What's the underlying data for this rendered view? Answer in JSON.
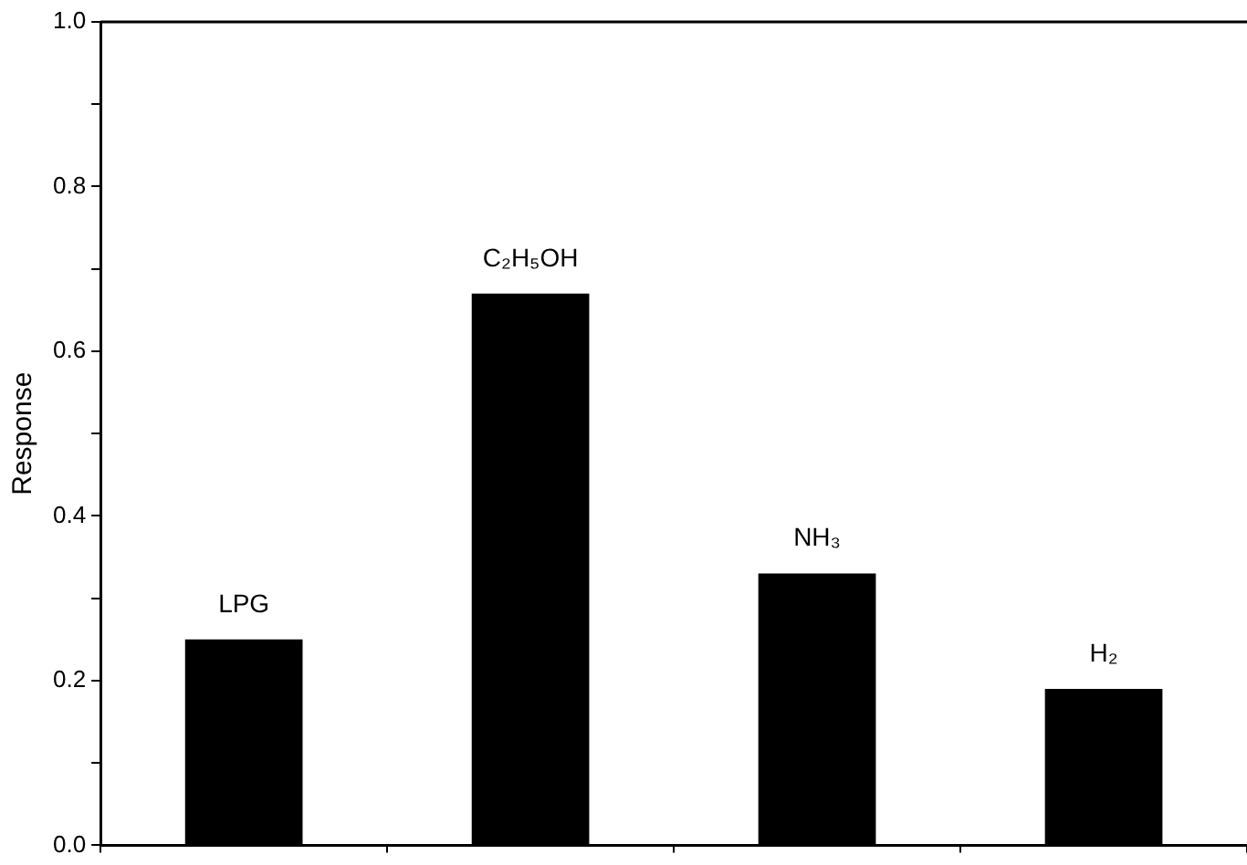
{
  "chart_data": {
    "type": "bar",
    "ylabel": "Response",
    "categories": [
      "LPG",
      "C₂H₅OH",
      "NH₃",
      "H₂"
    ],
    "values": [
      0.25,
      0.67,
      0.33,
      0.19
    ],
    "color": "#000000",
    "ylim": [
      0,
      1
    ],
    "yticks": [
      {
        "value": 0,
        "label": "0.0"
      },
      {
        "value": 0.1,
        "label": null
      },
      {
        "value": 0.2,
        "label": "0.2"
      },
      {
        "value": 0.3,
        "label": null
      },
      {
        "value": 0.4,
        "label": "0.4"
      },
      {
        "value": 0.5,
        "label": null
      },
      {
        "value": 0.6,
        "label": "0.6"
      },
      {
        "value": 0.7,
        "label": null
      },
      {
        "value": 0.8,
        "label": "0.8"
      },
      {
        "value": 0.9,
        "label": null
      },
      {
        "value": 1,
        "label": "1.0"
      }
    ],
    "grid": false,
    "legend": false,
    "tick_labels": "y"
  }
}
